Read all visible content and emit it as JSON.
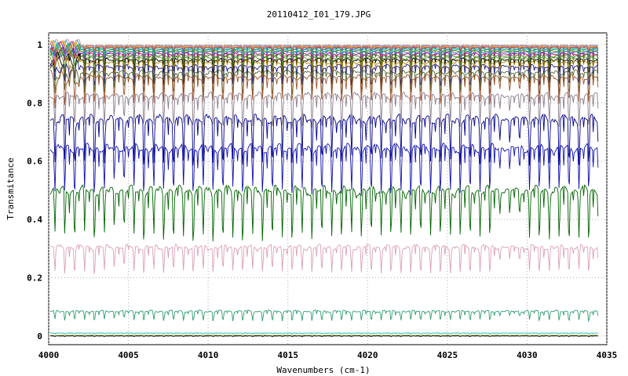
{
  "chart_data": {
    "type": "line",
    "title": "20110412_I01_179.JPG",
    "xlabel": "Wavenumbers (cm-1)",
    "ylabel": "Transmitance",
    "xlim": [
      4000,
      4035
    ],
    "ylim": [
      -0.03,
      1.04
    ],
    "x_ticks": [
      4000,
      4005,
      4010,
      4015,
      4020,
      4025,
      4030,
      4035
    ],
    "y_ticks": [
      0,
      0.2,
      0.4,
      0.6,
      0.8,
      1
    ],
    "grid": true,
    "legend": "none",
    "sample_step": 0.05,
    "series": [
      {
        "color": "#f08080",
        "base": 0.998,
        "depth": 0.004
      },
      {
        "color": "#33aaff",
        "base": 0.996,
        "depth": 0.006
      },
      {
        "color": "#e6c000",
        "base": 0.994,
        "depth": 0.008
      },
      {
        "color": "#ff6600",
        "base": 0.992,
        "depth": 0.01
      },
      {
        "color": "#9933cc",
        "base": 0.99,
        "depth": 0.012
      },
      {
        "color": "#2e8b57",
        "base": 0.986,
        "depth": 0.015
      },
      {
        "color": "#00cccc",
        "base": 0.982,
        "depth": 0.018
      },
      {
        "color": "#808000",
        "base": 0.978,
        "depth": 0.02
      },
      {
        "color": "#4169e1",
        "base": 0.974,
        "depth": 0.024
      },
      {
        "color": "#cc0066",
        "base": 0.968,
        "depth": 0.028
      },
      {
        "color": "#228b22",
        "base": 0.962,
        "depth": 0.032
      },
      {
        "color": "#6b8e23",
        "base": 0.955,
        "depth": 0.038
      },
      {
        "color": "#000000",
        "base": 0.948,
        "depth": 0.045
      },
      {
        "color": "#b8860b",
        "base": 0.94,
        "depth": 0.05
      },
      {
        "color": "#1a1a80",
        "base": 0.925,
        "depth": 0.06
      },
      {
        "color": "#556b2f",
        "base": 0.905,
        "depth": 0.07
      },
      {
        "color": "#a0522d",
        "base": 0.888,
        "depth": 0.08
      },
      {
        "color": "#8b7b8b",
        "base": 0.825,
        "depth": 0.1
      },
      {
        "color": "#00008b",
        "base": 0.745,
        "depth": 0.14
      },
      {
        "color": "#1010b0",
        "base": 0.645,
        "depth": 0.14
      },
      {
        "color": "#006400",
        "base": 0.5,
        "depth": 0.15
      },
      {
        "color": "#dba0b8",
        "base": 0.305,
        "depth": 0.08
      },
      {
        "color": "#2e9e6e",
        "base": 0.085,
        "depth": 0.03
      },
      {
        "color": "#20b2aa",
        "base": 0.01,
        "depth": 0.003
      },
      {
        "color": "#000000",
        "base": 0.0,
        "depth": 0.002
      },
      {
        "color": "#6b8e23",
        "base": 0.002,
        "depth": 0.002
      }
    ]
  }
}
